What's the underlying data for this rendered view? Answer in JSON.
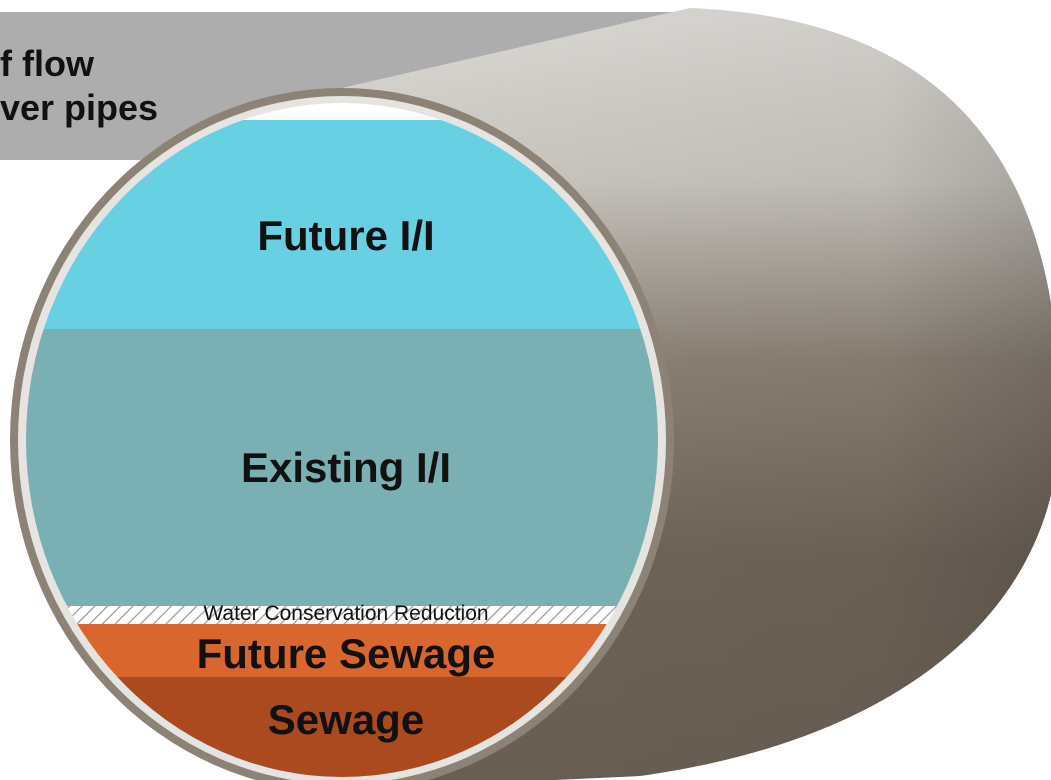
{
  "banner": {
    "line1": "f flow",
    "line2": "ver pipes"
  },
  "layers": {
    "future_ii": "Future I/I",
    "existing_ii": "Existing I/I",
    "water_conservation": "Water Conservation Reduction",
    "future_sewage": "Future Sewage",
    "sewage": "Sewage"
  },
  "colors": {
    "banner": "#adadad",
    "future_ii": "#67d1e3",
    "existing_ii": "#7ab0b3",
    "future_sewage": "#d9662e",
    "sewage": "#ab4a1f",
    "pipe_light": "#d7d5d0",
    "pipe_dark": "#70655a",
    "rim": "#8c8276"
  }
}
